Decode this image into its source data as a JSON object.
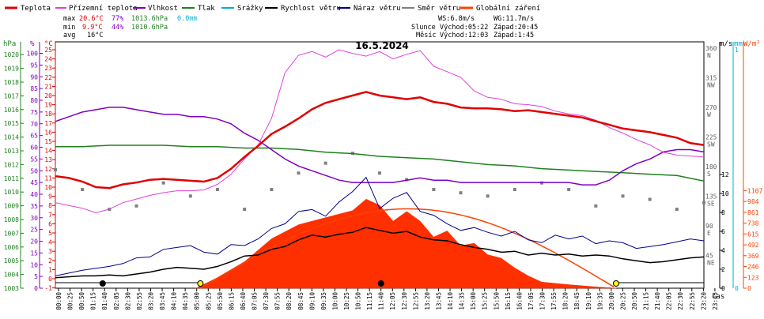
{
  "legend": [
    {
      "label": "Teplota",
      "color": "#e00000"
    },
    {
      "label": "Přízemní teplota",
      "color": "#e040e0"
    },
    {
      "label": "Vlhkost",
      "color": "#8000c0"
    },
    {
      "label": "Tlak",
      "color": "#208020"
    },
    {
      "label": "Srážky",
      "color": "#00b0d0"
    },
    {
      "label": "Rychlost větru",
      "color": "#000000"
    },
    {
      "label": "Náraz větru",
      "color": "#00008c"
    },
    {
      "label": "Směr větru",
      "color": "#808080"
    },
    {
      "label": "Globální záření",
      "color": "#ff4000"
    }
  ],
  "stats": {
    "max_label": "max",
    "max_temp": "20.6°C",
    "max_hum": "77%",
    "max_press": "1013.6hPa",
    "rain": "0.0mm",
    "min_label": "min",
    "min_temp": "9.9°C",
    "min_hum": "44%",
    "min_press": "1010.6hPa",
    "avg_label": "avg",
    "avg_temp": "16°C"
  },
  "wind_info": {
    "ws": "WS:6.8m/s",
    "wg": "WG:11.7m/s"
  },
  "sun_info": {
    "label": "Slunce",
    "rise": "Východ:05:22",
    "set": "Západ:20:45"
  },
  "moon_info": {
    "label": "Měsíc",
    "rise": "Východ:12:03",
    "set": "Západ:1:45"
  },
  "date_title": "16.5.2024",
  "axis_units": {
    "hpa": "hPa",
    "pct": "%",
    "degc": "°C",
    "ms": "m/s",
    "mm": "mm",
    "wm2": "W/m²",
    "time": "čas"
  },
  "chart_data": {
    "type": "line",
    "title": "16.5.2024",
    "x_ticks": [
      "00:00",
      "00:25",
      "00:50",
      "01:15",
      "01:40",
      "02:05",
      "02:30",
      "02:55",
      "03:20",
      "03:45",
      "04:10",
      "04:35",
      "05:00",
      "05:25",
      "05:50",
      "06:15",
      "06:40",
      "07:05",
      "07:30",
      "07:55",
      "08:20",
      "08:45",
      "09:10",
      "09:35",
      "10:00",
      "10:25",
      "10:50",
      "11:15",
      "11:40",
      "12:05",
      "12:30",
      "12:55",
      "13:20",
      "13:45",
      "14:10",
      "14:35",
      "15:00",
      "15:25",
      "15:50",
      "16:15",
      "16:40",
      "17:05",
      "17:30",
      "17:55",
      "18:20",
      "18:45",
      "19:10",
      "19:35",
      "20:00",
      "20:25",
      "20:50",
      "21:15",
      "21:40",
      "22:05",
      "22:30",
      "22:55",
      "23:20",
      "23:45"
    ],
    "axes": {
      "pressure_hpa": {
        "range": [
          1003,
          1021
        ],
        "ticks": [
          1003,
          1004,
          1005,
          1006,
          1007,
          1008,
          1009,
          1010,
          1011,
          1012,
          1013,
          1014,
          1015,
          1016,
          1017,
          1018,
          1019,
          1020
        ]
      },
      "humidity_pct": {
        "range": [
          0,
          105
        ],
        "ticks": [
          0,
          5,
          10,
          15,
          20,
          25,
          30,
          35,
          40,
          45,
          50,
          55,
          60,
          65,
          70,
          75,
          80,
          85,
          90,
          95,
          100
        ]
      },
      "temperature_c": {
        "range": [
          -1,
          26
        ],
        "ticks": [
          -1,
          0,
          1,
          2,
          3,
          4,
          5,
          6,
          7,
          8,
          9,
          10,
          11,
          12,
          13,
          14,
          15,
          16,
          17,
          18,
          19,
          20,
          21,
          22,
          23,
          24,
          25
        ]
      },
      "wind_dir": {
        "ticks": [
          {
            "deg": 45,
            "lab": "NE"
          },
          {
            "deg": 90,
            "lab": "E"
          },
          {
            "deg": 135,
            "lab": "SE"
          },
          {
            "deg": 180,
            "lab": "S"
          },
          {
            "deg": 225,
            "lab": "SW"
          },
          {
            "deg": 270,
            "lab": "W"
          },
          {
            "deg": 315,
            "lab": "NW"
          },
          {
            "deg": 360,
            "lab": "N"
          }
        ]
      },
      "wind_ms": {
        "ticks": [
          0,
          2,
          4,
          6,
          8,
          10,
          12
        ]
      },
      "rain_mm": {
        "ticks": [
          0,
          1
        ]
      },
      "radiation_wm2": {
        "ticks": [
          0,
          123,
          246,
          369,
          492,
          615,
          738,
          861,
          984,
          1107
        ]
      }
    },
    "series": [
      {
        "name": "Teplota",
        "unit": "°C",
        "x_hours": [
          0,
          0.5,
          1,
          1.5,
          2,
          2.5,
          3,
          3.5,
          4,
          4.5,
          5,
          5.5,
          6,
          6.5,
          7,
          7.5,
          8,
          8.5,
          9,
          9.5,
          10,
          10.5,
          11,
          11.5,
          12,
          12.5,
          13,
          13.5,
          14,
          14.5,
          15,
          15.5,
          16,
          16.5,
          17,
          17.5,
          18,
          18.5,
          19,
          19.5,
          20,
          20.5,
          21,
          21.5,
          22,
          22.5,
          23,
          23.5,
          24
        ],
        "values": [
          11.2,
          11.0,
          10.6,
          10.0,
          9.9,
          10.3,
          10.5,
          10.8,
          10.9,
          10.8,
          10.7,
          10.6,
          11.0,
          12.0,
          13.3,
          14.5,
          15.8,
          16.6,
          17.5,
          18.5,
          19.2,
          19.6,
          20.0,
          20.4,
          20.0,
          19.8,
          19.6,
          19.8,
          19.3,
          19.1,
          18.7,
          18.6,
          18.6,
          18.5,
          18.3,
          18.4,
          18.2,
          18.0,
          17.8,
          17.6,
          17.2,
          16.8,
          16.4,
          16.2,
          16.0,
          15.7,
          15.4,
          14.8,
          14.6
        ]
      },
      {
        "name": "Přízemní teplota",
        "unit": "°C",
        "x_hours": [
          0,
          0.5,
          1,
          1.5,
          2,
          2.5,
          3,
          3.5,
          4,
          4.5,
          5,
          5.5,
          6,
          6.5,
          7,
          7.5,
          8,
          8.5,
          9,
          9.5,
          10,
          10.5,
          11,
          11.5,
          12,
          12.5,
          13,
          13.5,
          14,
          14.5,
          15,
          15.5,
          16,
          16.5,
          17,
          17.5,
          18,
          18.5,
          19,
          19.5,
          20,
          20.5,
          21,
          21.5,
          22,
          22.5,
          23,
          23.5,
          24
        ],
        "values": [
          8.3,
          8.0,
          7.7,
          7.2,
          7.6,
          8.3,
          8.7,
          9.1,
          9.4,
          9.6,
          9.6,
          9.7,
          10.3,
          11.4,
          13.1,
          14.6,
          17.5,
          22.5,
          24.4,
          24.8,
          24.2,
          25.0,
          24.6,
          24.3,
          24.8,
          24.0,
          24.5,
          24.9,
          23.2,
          22.6,
          22.0,
          20.5,
          19.8,
          19.6,
          19.1,
          19.0,
          18.8,
          18.3,
          18.0,
          17.8,
          17.3,
          16.5,
          15.9,
          15.2,
          14.6,
          13.8,
          13.5,
          13.4,
          13.3
        ]
      },
      {
        "name": "Vlhkost",
        "unit": "%",
        "x_hours": [
          0,
          0.5,
          1,
          1.5,
          2,
          2.5,
          3,
          3.5,
          4,
          4.5,
          5,
          5.5,
          6,
          6.5,
          7,
          7.5,
          8,
          8.5,
          9,
          9.5,
          10,
          10.5,
          11,
          11.5,
          12,
          12.5,
          13,
          13.5,
          14,
          14.5,
          15,
          15.5,
          16,
          16.5,
          17,
          17.5,
          18,
          18.5,
          19,
          19.5,
          20,
          20.5,
          21,
          21.5,
          22,
          22.5,
          23,
          23.5,
          24
        ],
        "values": [
          71,
          73,
          75,
          76,
          77,
          77,
          76,
          75,
          74,
          74,
          73,
          73,
          72,
          70,
          66,
          63,
          59,
          55,
          52,
          50,
          48,
          46,
          45,
          45,
          45,
          45,
          46,
          47,
          46,
          46,
          45,
          45,
          45,
          45,
          45,
          45,
          45,
          45,
          45,
          44,
          44,
          46,
          50,
          53,
          55,
          58,
          59,
          59,
          58
        ]
      },
      {
        "name": "Tlak",
        "unit": "hPa",
        "x_hours": [
          0,
          1,
          2,
          3,
          4,
          5,
          6,
          7,
          8,
          9,
          10,
          11,
          12,
          13,
          14,
          15,
          16,
          17,
          18,
          19,
          20,
          21,
          22,
          23,
          24
        ],
        "values": [
          1013.3,
          1013.3,
          1013.4,
          1013.4,
          1013.4,
          1013.3,
          1013.3,
          1013.2,
          1013.2,
          1013.1,
          1012.9,
          1012.8,
          1012.6,
          1012.5,
          1012.4,
          1012.2,
          1012.0,
          1011.9,
          1011.7,
          1011.6,
          1011.5,
          1011.4,
          1011.3,
          1011.2,
          1010.8
        ]
      },
      {
        "name": "Rychlost větru",
        "unit": "m/s",
        "x_hours": [
          0,
          1,
          1.5,
          2,
          2.5,
          3,
          3.5,
          4,
          4.5,
          5,
          5.5,
          6,
          6.5,
          7,
          7.5,
          8,
          8.5,
          9,
          9.5,
          10,
          10.5,
          11,
          11.5,
          12,
          12.5,
          13,
          13.5,
          14,
          14.5,
          15,
          15.5,
          16,
          16.5,
          17,
          17.5,
          18,
          18.5,
          19,
          19.5,
          20,
          20.5,
          21,
          21.5,
          22,
          22.5,
          23,
          23.5,
          24
        ],
        "values": [
          1.1,
          1.3,
          1.3,
          1.4,
          1.3,
          1.5,
          1.7,
          2.0,
          2.2,
          2.1,
          2.0,
          2.3,
          2.8,
          3.4,
          3.5,
          4.1,
          4.4,
          5.1,
          5.6,
          5.4,
          5.7,
          5.9,
          6.4,
          6.1,
          5.8,
          6.0,
          5.4,
          5.1,
          5.0,
          4.6,
          4.3,
          4.1,
          3.8,
          3.9,
          3.5,
          3.7,
          3.5,
          3.6,
          3.4,
          3.5,
          3.4,
          3.1,
          2.9,
          2.7,
          2.8,
          3.0,
          3.2,
          3.3
        ]
      },
      {
        "name": "Náraz větru",
        "unit": "m/s",
        "x_hours": [
          0,
          1,
          1.5,
          2,
          2.5,
          3,
          3.5,
          4,
          4.5,
          5,
          5.5,
          6,
          6.5,
          7,
          7.5,
          8,
          8.5,
          9,
          9.5,
          10,
          10.5,
          11,
          11.5,
          12,
          12.5,
          13,
          13.5,
          14,
          14.5,
          15,
          15.5,
          16,
          16.5,
          17,
          17.5,
          18,
          18.5,
          19,
          19.5,
          20,
          20.5,
          21,
          21.5,
          22,
          22.5,
          23,
          23.5,
          24
        ],
        "values": [
          1.3,
          1.9,
          2.1,
          2.3,
          2.6,
          3.2,
          3.3,
          4.1,
          4.3,
          4.5,
          3.8,
          3.6,
          4.6,
          4.5,
          5.2,
          6.3,
          6.8,
          8.1,
          8.3,
          7.6,
          9.1,
          10.2,
          11.7,
          8.4,
          9.5,
          10.1,
          8.1,
          7.7,
          6.8,
          6.1,
          6.4,
          5.9,
          5.5,
          6.0,
          5.1,
          4.8,
          5.6,
          5.2,
          5.5,
          4.7,
          5.0,
          4.8,
          4.2,
          4.4,
          4.6,
          4.9,
          5.2,
          5.0
        ]
      },
      {
        "name": "Směr větru",
        "unit": "°",
        "x_hours": [
          0,
          1,
          2,
          3,
          4,
          5,
          6,
          7,
          8,
          9,
          10,
          11,
          12,
          13,
          14,
          15,
          16,
          17,
          18,
          19,
          20,
          21,
          22,
          23,
          24
        ],
        "values": [
          180,
          150,
          120,
          125,
          160,
          140,
          150,
          120,
          150,
          175,
          190,
          205,
          175,
          165,
          150,
          145,
          140,
          150,
          160,
          150,
          125,
          140,
          135,
          120,
          130
        ]
      },
      {
        "name": "Globální záření",
        "unit": "W/m²",
        "x_hours": [
          5.2,
          6,
          7,
          8,
          9,
          10,
          11,
          11.5,
          12,
          12.5,
          13,
          13.5,
          14,
          14.5,
          15,
          15.5,
          16,
          16.5,
          17,
          17.5,
          18,
          19,
          20,
          20.5,
          20.75
        ],
        "values": [
          0,
          120,
          300,
          560,
          720,
          800,
          880,
          1010,
          940,
          760,
          870,
          760,
          580,
          650,
          480,
          510,
          380,
          340,
          230,
          140,
          70,
          40,
          15,
          5,
          0
        ]
      }
    ],
    "sun_markers": {
      "sunrise": "05:22",
      "sunset": "20:45"
    },
    "moon_markers": {
      "moonrise": "12:03",
      "moonset": "01:45"
    }
  }
}
